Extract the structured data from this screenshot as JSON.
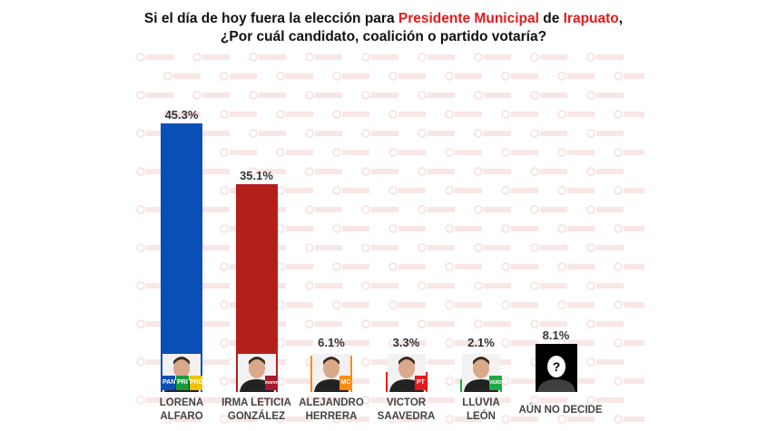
{
  "header": {
    "title_pre": "Si el día de hoy fuera la elección para ",
    "title_hl1": "Presidente Municipal",
    "title_mid": " de ",
    "title_hl2": "Irapuato",
    "title_post": ",",
    "subtitle": "¿Por cuál candidato, coalición o partido votaría?"
  },
  "watermark": "RUBRUM",
  "chart_data": {
    "type": "bar",
    "title": "Si el día de hoy fuera la elección para Presidente Municipal de Irapuato, ¿Por cuál candidato, coalición o partido votaría?",
    "categories": [
      "LORENA ALFARO",
      "IRMA LETICIA GONZÁLEZ",
      "ALEJANDRO HERRERA",
      "VICTOR SAAVEDRA",
      "LLUVIA LEÓN",
      "AÚN NO DECIDE"
    ],
    "name_lines": [
      [
        "LORENA",
        "ALFARO"
      ],
      [
        "IRMA LETICIA",
        "GONZÁLEZ"
      ],
      [
        "ALEJANDRO",
        "HERRERA"
      ],
      [
        "VICTOR",
        "SAAVEDRA"
      ],
      [
        "LLUVIA",
        "LEÓN"
      ],
      [
        "AÚN NO DECIDE",
        ""
      ]
    ],
    "values": [
      45.3,
      35.1,
      6.1,
      3.3,
      2.1,
      8.1
    ],
    "labels": [
      "45.3%",
      "35.1%",
      "6.1%",
      "3.3%",
      "2.1%",
      "8.1%"
    ],
    "colors": [
      "#0a4fb5",
      "#b3201c",
      "#ff8a12",
      "#ef1c1c",
      "#1faa45",
      "#000000"
    ],
    "parties": [
      [
        "PAN",
        "PRI",
        "PRD"
      ],
      [
        "morena"
      ],
      [
        "MC"
      ],
      [
        "PT"
      ],
      [
        "VERDE"
      ],
      []
    ],
    "unknown_mark": "?",
    "ylim": [
      0,
      50
    ],
    "xlabel": "",
    "ylabel": ""
  }
}
